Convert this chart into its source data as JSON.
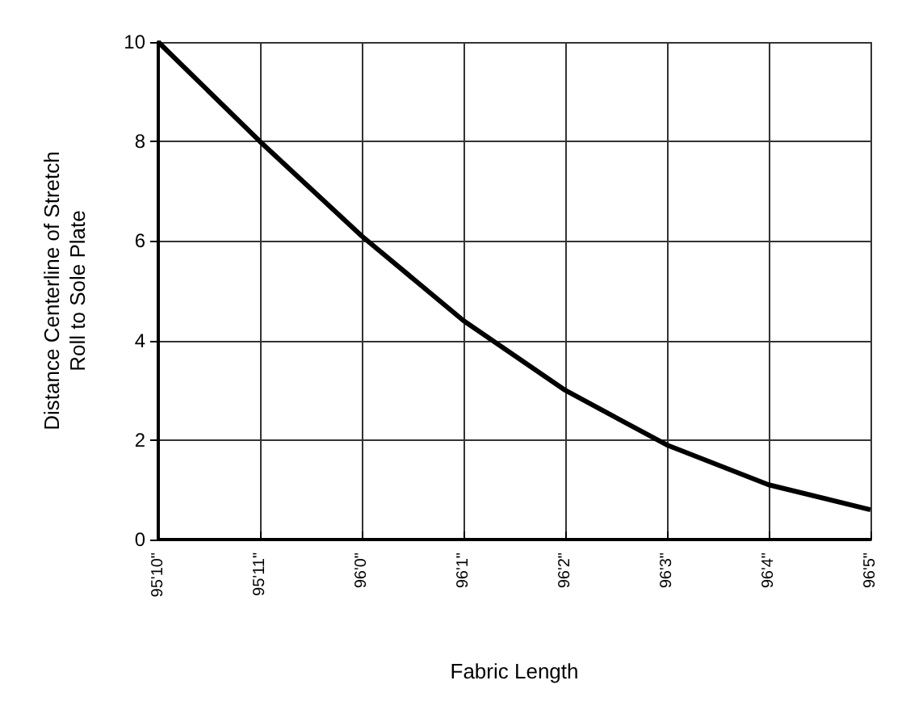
{
  "chart_data": {
    "type": "line",
    "xlabel": "Fabric Length",
    "ylabel": "Distance Centerline of Stretch\nRoll to Sole Plate",
    "categories": [
      "95'10\"",
      "95'11\"",
      "96'0\"",
      "96'1\"",
      "96'2\"",
      "96'3\"",
      "96'4\"",
      "96'5\""
    ],
    "values": [
      10,
      8,
      6.1,
      4.4,
      3,
      1.9,
      1.1,
      0.6
    ],
    "color": "#000000",
    "ylim": [
      0,
      10
    ],
    "yticks": [
      0,
      2,
      4,
      6,
      8,
      10
    ],
    "grid": true,
    "marker": "none",
    "line_style": "solid"
  }
}
